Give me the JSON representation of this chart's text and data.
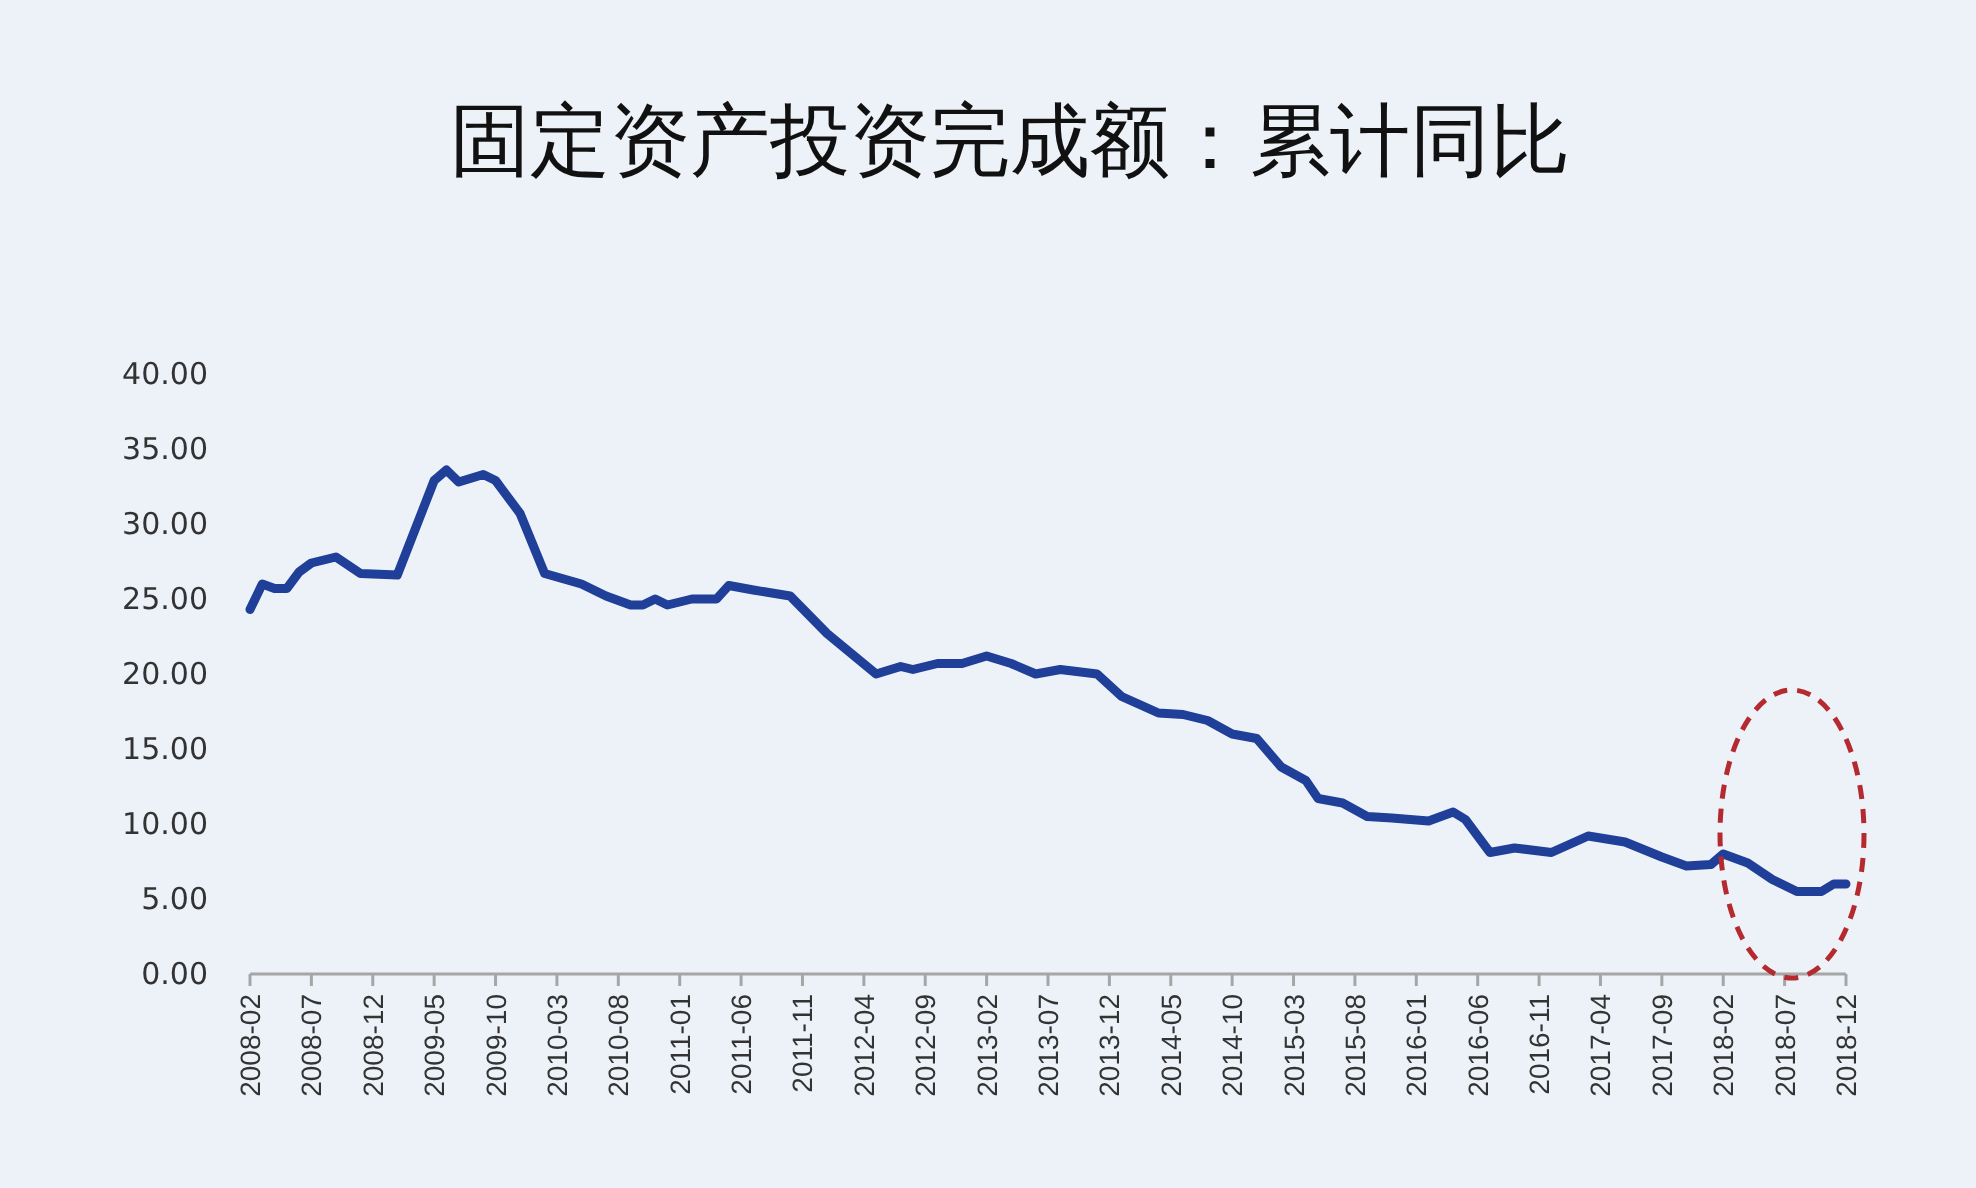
{
  "chart_data": {
    "type": "line",
    "title": "固定资产投资完成额：累计同比",
    "x": [
      "2008-02",
      "2008-03",
      "2008-04",
      "2008-05",
      "2008-06",
      "2008-07",
      "2008-09",
      "2008-11",
      "2009-02",
      "2009-05",
      "2009-06",
      "2009-07",
      "2009-09",
      "2009-10",
      "2009-12",
      "2010-02",
      "2010-05",
      "2010-07",
      "2010-09",
      "2010-10",
      "2010-11",
      "2010-12",
      "2011-02",
      "2011-04",
      "2011-05",
      "2011-07",
      "2011-10",
      "2012-01",
      "2012-05",
      "2012-07",
      "2012-08",
      "2012-10",
      "2012-12",
      "2013-02",
      "2013-04",
      "2013-06",
      "2013-08",
      "2013-11",
      "2014-01",
      "2014-04",
      "2014-06",
      "2014-08",
      "2014-10",
      "2014-12",
      "2015-02",
      "2015-04",
      "2015-05",
      "2015-07",
      "2015-09",
      "2015-11",
      "2016-02",
      "2016-04",
      "2016-05",
      "2016-07",
      "2016-09",
      "2016-12",
      "2017-03",
      "2017-06",
      "2017-09",
      "2017-11",
      "2018-01",
      "2018-02",
      "2018-04",
      "2018-06",
      "2018-08",
      "2018-10",
      "2018-11",
      "2018-12"
    ],
    "series": [
      {
        "color": "#1f3f99",
        "values": [
          24.3,
          26.0,
          25.7,
          25.7,
          26.8,
          27.4,
          27.8,
          26.7,
          26.6,
          32.9,
          33.6,
          32.8,
          33.3,
          32.9,
          30.7,
          26.7,
          26.0,
          25.2,
          24.6,
          24.6,
          25.0,
          24.6,
          25.0,
          25.0,
          25.9,
          25.6,
          25.2,
          22.7,
          20.0,
          20.5,
          20.3,
          20.7,
          20.7,
          21.2,
          20.7,
          20.0,
          20.3,
          20.0,
          18.5,
          17.4,
          17.3,
          16.9,
          16.0,
          15.7,
          13.8,
          12.9,
          11.7,
          11.4,
          10.5,
          10.4,
          10.2,
          10.8,
          10.3,
          8.1,
          8.4,
          8.1,
          9.2,
          8.8,
          7.8,
          7.2,
          7.3,
          8.0,
          7.4,
          6.3,
          5.5,
          5.5,
          6.0,
          6.0
        ]
      }
    ],
    "xlim": [
      "2008-02",
      "2018-12"
    ],
    "xticks": [
      "2008-02",
      "2008-07",
      "2008-12",
      "2009-05",
      "2009-10",
      "2010-03",
      "2010-08",
      "2011-01",
      "2011-06",
      "2011-11",
      "2012-04",
      "2012-09",
      "2013-02",
      "2013-07",
      "2013-12",
      "2014-05",
      "2014-10",
      "2015-03",
      "2015-08",
      "2016-01",
      "2016-06",
      "2016-11",
      "2017-04",
      "2017-09",
      "2018-02",
      "2018-07",
      "2018-12"
    ],
    "ylim": [
      0,
      40
    ],
    "yticks": [
      {
        "value": 0,
        "label": "0.00"
      },
      {
        "value": 5,
        "label": "5.00"
      },
      {
        "value": 10,
        "label": "10.00"
      },
      {
        "value": 15,
        "label": "15.00"
      },
      {
        "value": 20,
        "label": "20.00"
      },
      {
        "value": 25,
        "label": "25.00"
      },
      {
        "value": 30,
        "label": "30.00"
      },
      {
        "value": 35,
        "label": "35.00"
      },
      {
        "value": 40,
        "label": "40.00"
      }
    ],
    "grid": false,
    "marker": "none",
    "line_style": "solid"
  }
}
